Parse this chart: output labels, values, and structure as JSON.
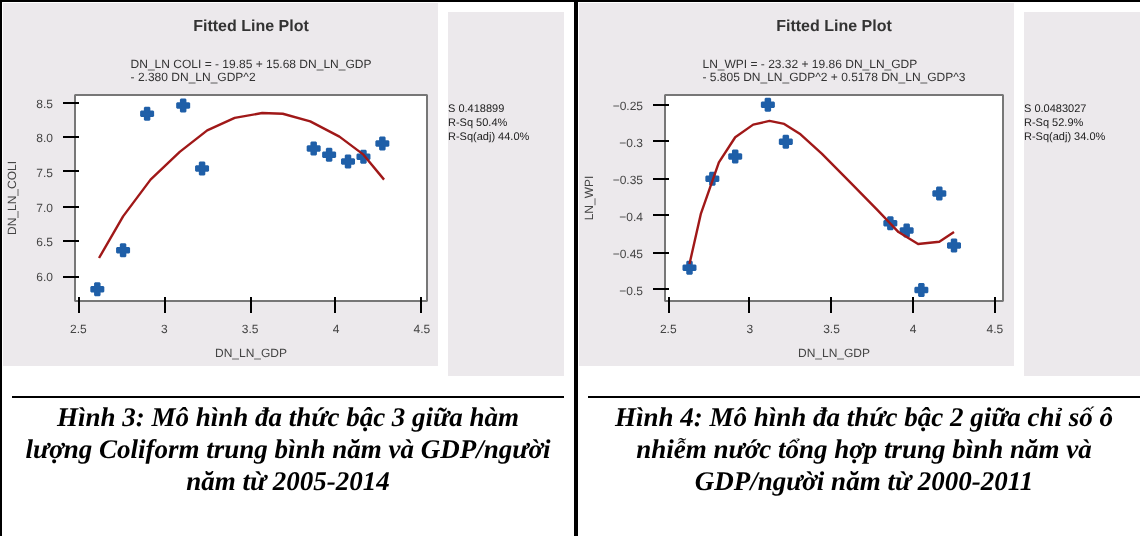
{
  "chart_data": [
    {
      "type": "scatter",
      "title": "Fitted Line Plot",
      "subtitle": "DN_LN COLI = - 19.85 + 15.68 DN_LN_GDP\n- 2.380 DN_LN_GDP^2",
      "xlabel": "DN_LN_GDP",
      "ylabel": "DN_LN_COLI",
      "xlim": [
        2.48,
        4.53
      ],
      "ylim": [
        5.64,
        8.61
      ],
      "xticks": [
        2.5,
        3.0,
        3.5,
        4.0,
        4.5
      ],
      "yticks": [
        {
          "value": 6.0,
          "label": "6.0"
        },
        6.5,
        {
          "value": 7.0,
          "label": "7.0"
        },
        7.5,
        {
          "value": 8.0,
          "label": "8.0"
        },
        8.5
      ],
      "grid": false,
      "series": [
        {
          "marker": "cross",
          "color": "#1f5fa8",
          "x": [
            2.61,
            2.76,
            2.9,
            3.11,
            3.22,
            3.87,
            3.96,
            4.07,
            4.16,
            4.27
          ],
          "values": [
            5.81,
            6.37,
            8.34,
            8.46,
            7.55,
            7.84,
            7.75,
            7.65,
            7.72,
            7.91
          ]
        },
        {
          "type": "line",
          "marker": "none",
          "color": "#a01818",
          "x": [
            2.62,
            2.76,
            2.92,
            3.09,
            3.25,
            3.41,
            3.57,
            3.69,
            3.85,
            4.02,
            4.16,
            4.28
          ],
          "values": [
            6.26,
            6.86,
            7.39,
            7.79,
            8.1,
            8.28,
            8.35,
            8.34,
            8.23,
            8.01,
            7.75,
            7.39
          ]
        }
      ],
      "annotations": [
        "S 0.418899",
        "R-Sq 50.4%",
        "R-Sq(adj) 44.0%",
        "Hình 3: Mô hình đa thức bậc 3 giữa hàm lượng Coliform trung bình năm và GDP/người năm từ 2005-2014"
      ]
    },
    {
      "type": "scatter",
      "title": "Fitted Line Plot",
      "subtitle": "LN_WPI = - 23.32 + 19.86 DN_LN_GDP\n- 5.805 DN_LN_GDP^2 + 0.5178 DN_LN_GDP^3",
      "xlabel": "DN_LN_GDP",
      "ylabel": "LN_WPI",
      "xlim": [
        2.48,
        4.55
      ],
      "ylim": [
        -0.515,
        -0.237
      ],
      "xticks": [
        2.5,
        3.0,
        3.5,
        4.0,
        4.5
      ],
      "yticks": [
        -0.25,
        -0.3,
        -0.35,
        -0.4,
        -0.45,
        -0.5
      ],
      "grid": false,
      "series": [
        {
          "marker": "cross",
          "color": "#1f5fa8",
          "x": [
            2.63,
            2.77,
            2.91,
            3.11,
            3.22,
            3.86,
            3.96,
            4.05,
            4.16,
            4.25
          ],
          "values": [
            -0.47,
            -0.35,
            -0.32,
            -0.25,
            -0.3,
            -0.41,
            -0.42,
            -0.5,
            -0.37,
            -0.44
          ]
        },
        {
          "type": "line",
          "marker": "none",
          "color": "#a01818",
          "x": [
            2.63,
            2.7,
            2.81,
            2.91,
            3.02,
            3.12,
            3.21,
            3.31,
            3.44,
            3.61,
            3.78,
            3.91,
            4.03,
            4.16,
            4.25
          ],
          "values": [
            -0.465,
            -0.397,
            -0.328,
            -0.294,
            -0.277,
            -0.272,
            -0.276,
            -0.29,
            -0.316,
            -0.354,
            -0.392,
            -0.422,
            -0.438,
            -0.435,
            -0.422
          ]
        }
      ],
      "annotations": [
        "S 0.0483027",
        "R-Sq 52.9%",
        "R-Sq(adj) 34.0%",
        "Hình 4: Mô hình đa thức bậc 2 giữa chỉ số ô nhiễm nước tổng hợp trung bình năm và GDP/người năm từ 2000-2011"
      ]
    }
  ]
}
